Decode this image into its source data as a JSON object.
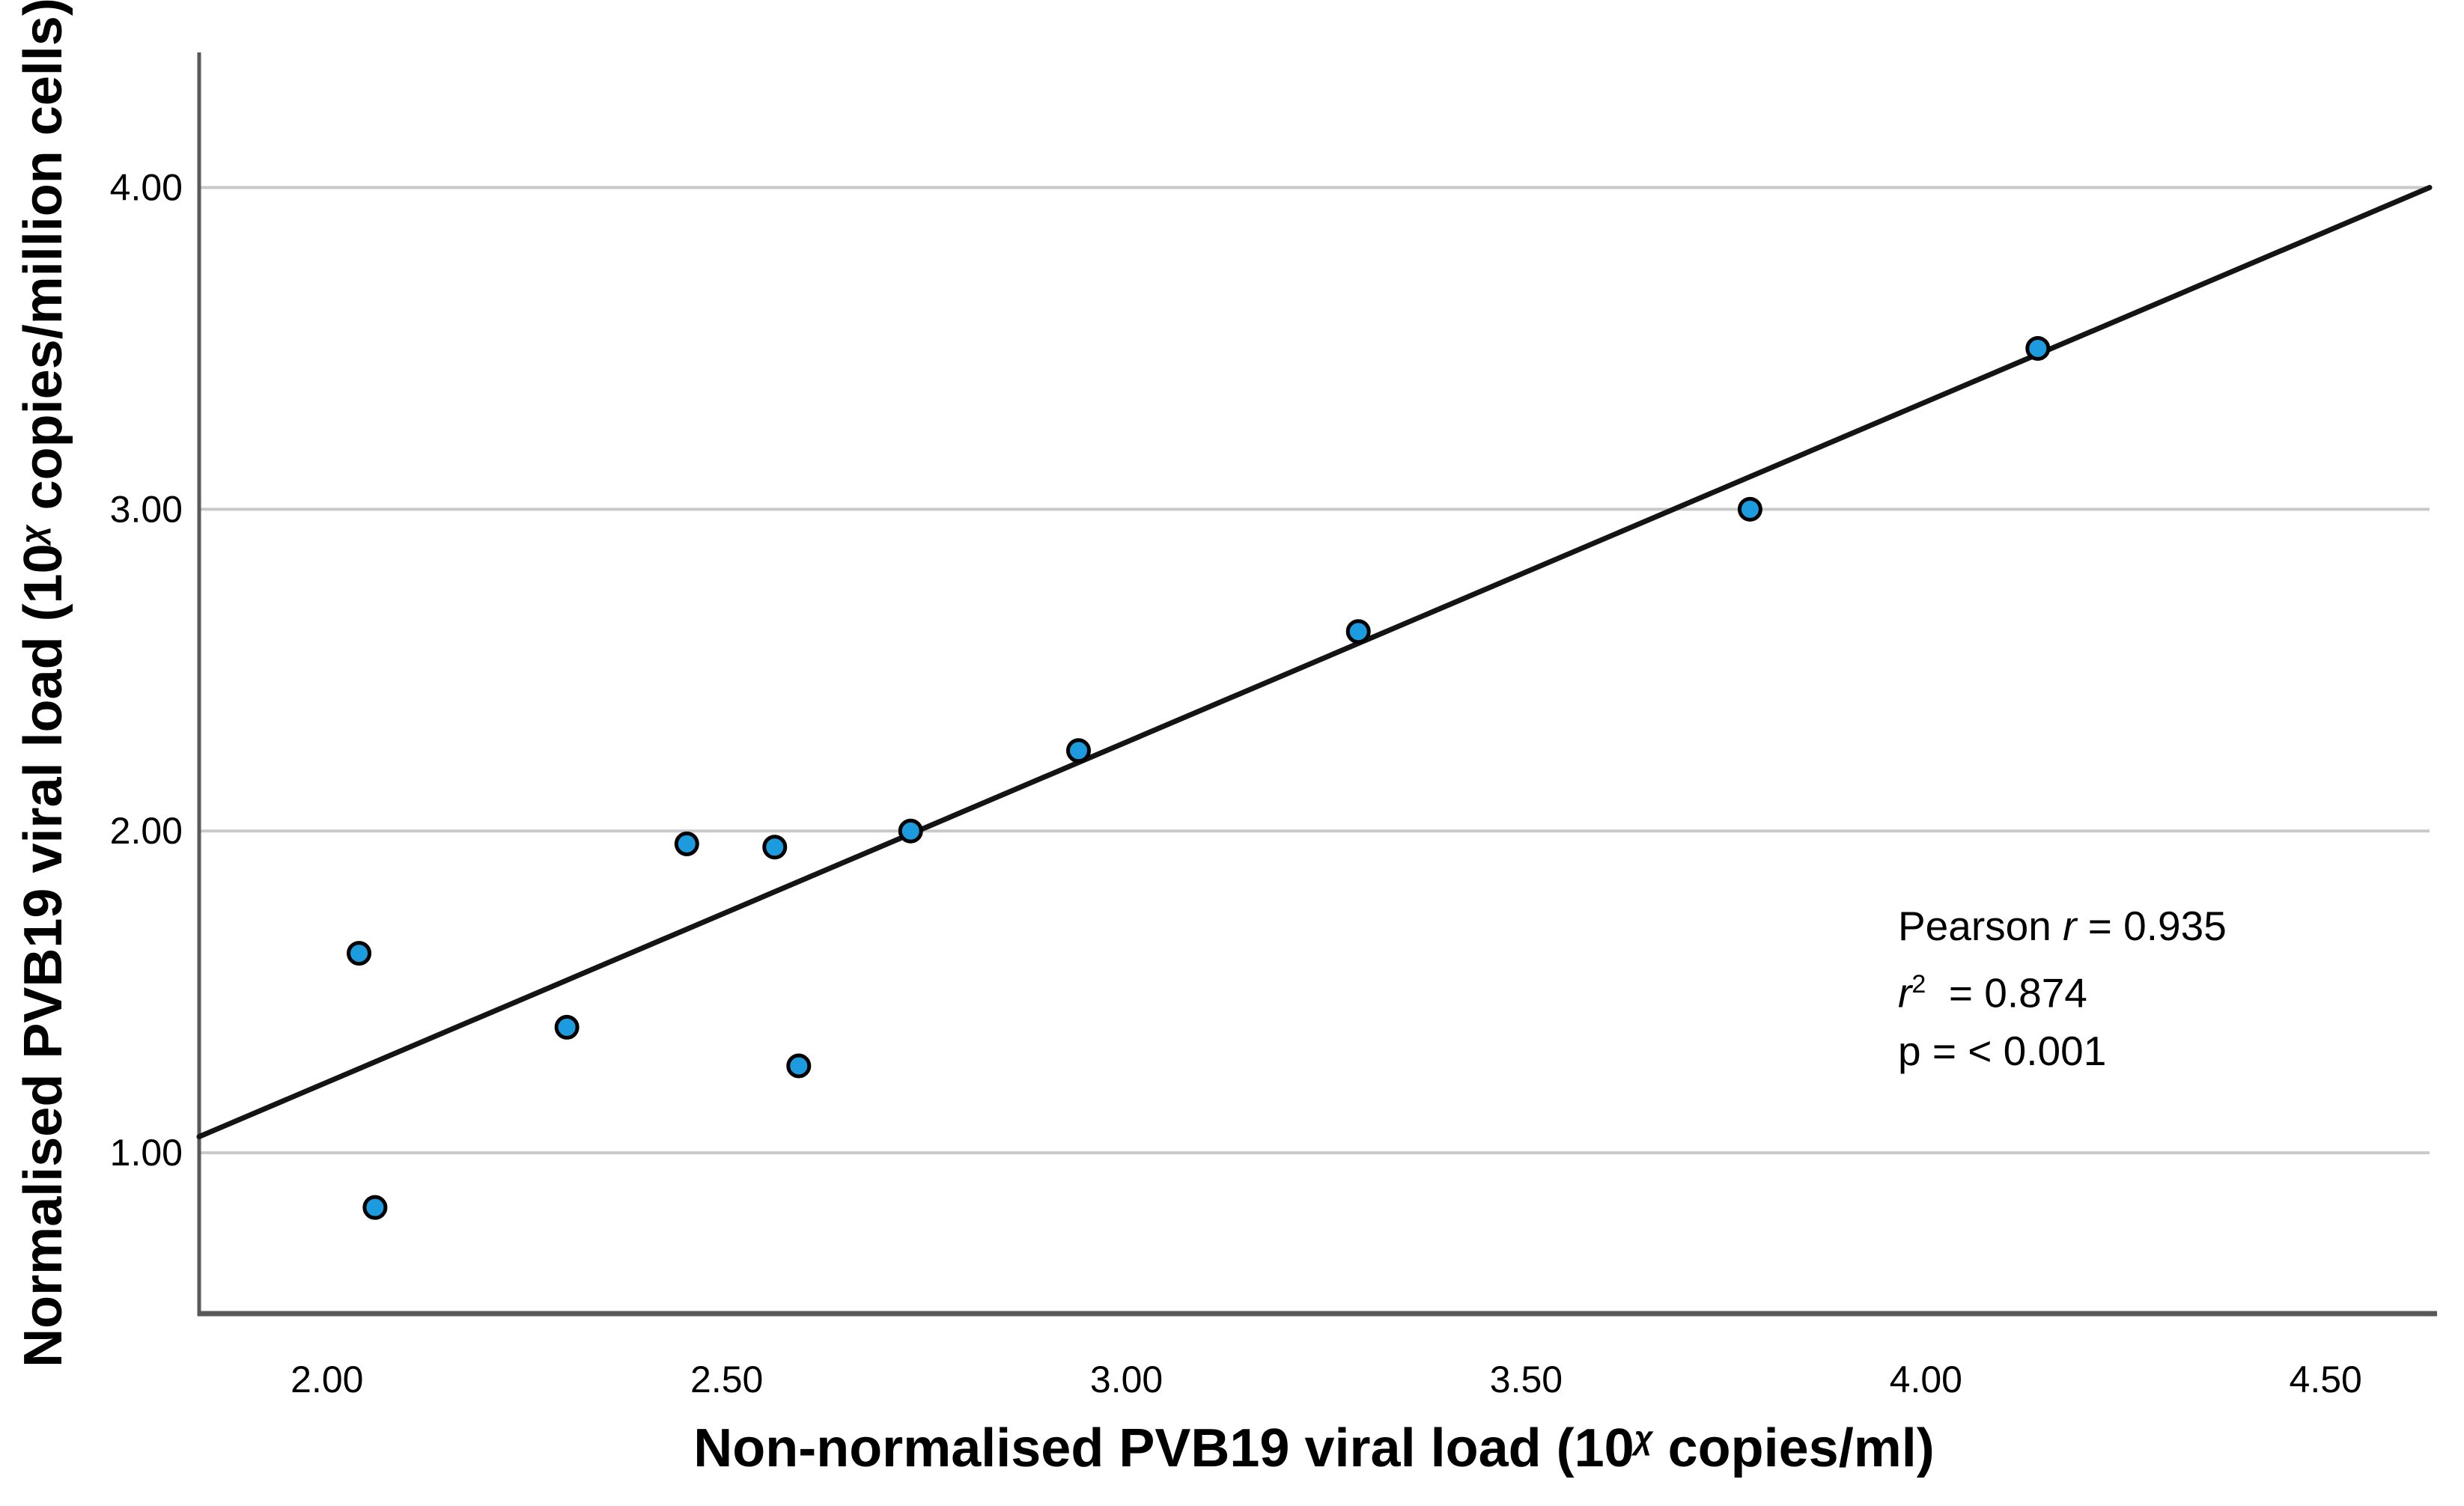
{
  "figure": {
    "background": "#ffffff"
  },
  "axes": {
    "x_title_prefix": "Non-normalised PVB19 viral load (10",
    "x_title_sup": "χ",
    "x_title_suffix": " copies/ml)",
    "y_title_prefix": "Normalised PVB19 viral load (10",
    "y_title_sup": "χ",
    "y_title_suffix": " copies/million cells)"
  },
  "annotation": {
    "line1_prefix": "Pearson ",
    "line1_var": "r",
    "line1_rest": " = 0.935",
    "line2_var": "r",
    "line2_sup": "2",
    "line2_rest": " = 0.874",
    "line3": "p = < 0.001"
  },
  "chart_data": {
    "type": "scatter",
    "title": "",
    "xlabel": "Non-normalised PVB19 viral load (10^x copies/ml)",
    "ylabel": "Normalised PVB19 viral load (10^x copies/million cells)",
    "x_domain": [
      1.84,
      4.63
    ],
    "y_domain": [
      0.5,
      4.42
    ],
    "x_ticks": [
      2.0,
      2.5,
      3.0,
      3.5,
      4.0,
      4.5
    ],
    "x_tick_labels": [
      "2.00",
      "2.50",
      "3.00",
      "3.50",
      "4.00",
      "4.50"
    ],
    "y_ticks": [
      1.0,
      2.0,
      3.0,
      4.0
    ],
    "y_tick_labels": [
      "1.00",
      "2.00",
      "3.00",
      "4.00"
    ],
    "grid": "horizontal-only",
    "legend": "none",
    "points": [
      {
        "x": 2.04,
        "y": 1.62
      },
      {
        "x": 2.06,
        "y": 0.83
      },
      {
        "x": 2.3,
        "y": 1.39
      },
      {
        "x": 2.45,
        "y": 1.96
      },
      {
        "x": 2.56,
        "y": 1.95
      },
      {
        "x": 2.59,
        "y": 1.27
      },
      {
        "x": 2.73,
        "y": 2.0
      },
      {
        "x": 2.94,
        "y": 2.25
      },
      {
        "x": 3.29,
        "y": 2.62
      },
      {
        "x": 3.78,
        "y": 3.0
      },
      {
        "x": 4.14,
        "y": 3.5
      }
    ],
    "fit_line": {
      "x1": 1.84,
      "y1": 1.05,
      "x2": 4.63,
      "y2": 4.0
    },
    "stats": {
      "pearson_r": 0.935,
      "r_squared": 0.874,
      "p_value": "< 0.001"
    },
    "colors": {
      "point_fill": "#1d9bdf",
      "point_stroke": "#000000",
      "gridline": "#c9c9c9",
      "axis_line": "#595959",
      "fit_line": "#141414",
      "tick_label": "#000000"
    }
  }
}
